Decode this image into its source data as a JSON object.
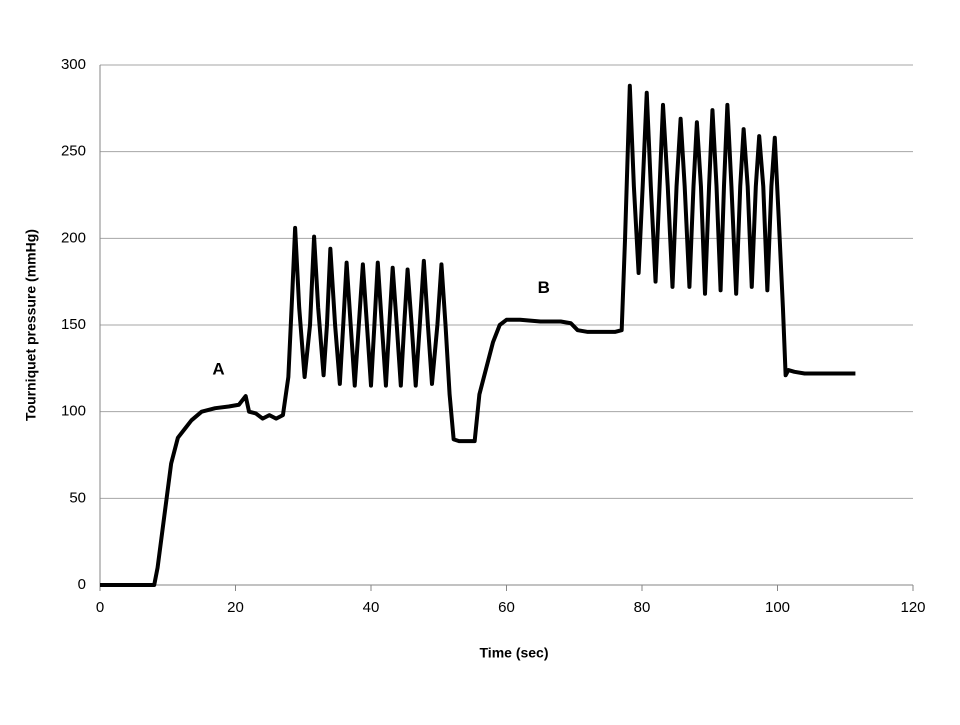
{
  "chart_data": {
    "type": "line",
    "x_label": "Time (sec)",
    "y_label": "Tourniquet pressure (mmHg)",
    "xlim": [
      0,
      120
    ],
    "xticks": [
      0,
      20,
      40,
      60,
      80,
      100,
      120
    ],
    "ylim": [
      0,
      300
    ],
    "yticks": [
      0,
      50,
      100,
      150,
      200,
      250,
      300
    ],
    "grid": true,
    "series": [
      {
        "color": "#000000",
        "x": [
          0,
          1.5,
          2,
          4,
          6,
          8,
          8.5,
          9.5,
          10.5,
          11.5,
          12.5,
          13.5,
          15,
          17,
          19,
          20.5,
          21.5,
          22,
          23,
          24,
          25,
          26,
          27,
          27.8,
          28.4,
          28.8,
          29.4,
          30.2,
          31.0,
          31.6,
          32.2,
          33.0,
          33.5,
          34.0,
          34.7,
          35.4,
          35.9,
          36.4,
          37.0,
          37.6,
          38.2,
          38.8,
          39.4,
          40.0,
          40.5,
          41.0,
          41.6,
          42.2,
          42.7,
          43.2,
          43.8,
          44.4,
          44.9,
          45.4,
          46.0,
          46.6,
          47.2,
          47.8,
          48.4,
          49.0,
          49.8,
          50.4,
          51.0,
          51.6,
          52.2,
          53,
          55.3,
          56,
          57,
          58,
          59,
          60,
          62,
          65,
          68,
          69.5,
          70.5,
          72,
          74,
          76,
          77,
          77.5,
          78.2,
          78.8,
          79.5,
          80.1,
          80.7,
          81.3,
          82.0,
          82.6,
          83.1,
          83.8,
          84.5,
          85.1,
          85.7,
          86.3,
          87.0,
          87.6,
          88.1,
          88.7,
          89.3,
          89.9,
          90.4,
          91.0,
          91.6,
          92.1,
          92.6,
          93.2,
          93.9,
          94.5,
          95.0,
          95.6,
          96.2,
          96.8,
          97.3,
          97.9,
          98.5,
          99.1,
          99.6,
          100.2,
          100.8,
          101.2,
          101.6,
          102.5,
          104,
          106,
          108,
          111.5
        ],
        "values": [
          0,
          0,
          0,
          0,
          0,
          0,
          10,
          40,
          70,
          85,
          90,
          95,
          100,
          102,
          103,
          104,
          109,
          100,
          99,
          96,
          98,
          96,
          98,
          120,
          170,
          206,
          160,
          120,
          150,
          201,
          160,
          121,
          150,
          194,
          150,
          116,
          150,
          186,
          150,
          115,
          150,
          185,
          150,
          115,
          150,
          186,
          150,
          115,
          150,
          183,
          150,
          115,
          150,
          182,
          150,
          115,
          150,
          187,
          150,
          116,
          150,
          185,
          150,
          110,
          84,
          83,
          83,
          110,
          125,
          140,
          150,
          153,
          153,
          152,
          152,
          151,
          147,
          146,
          146,
          146,
          147,
          200,
          288,
          230,
          180,
          230,
          284,
          230,
          175,
          230,
          277,
          230,
          172,
          230,
          269,
          230,
          172,
          230,
          267,
          230,
          168,
          230,
          274,
          230,
          170,
          230,
          277,
          230,
          168,
          230,
          263,
          230,
          172,
          230,
          259,
          230,
          170,
          230,
          258,
          210,
          160,
          121,
          124,
          123,
          122,
          122,
          122,
          122
        ]
      }
    ],
    "annotations": [
      {
        "text": "A",
        "x": 17.5,
        "y": 124
      },
      {
        "text": "B",
        "x": 65.5,
        "y": 171
      }
    ]
  }
}
